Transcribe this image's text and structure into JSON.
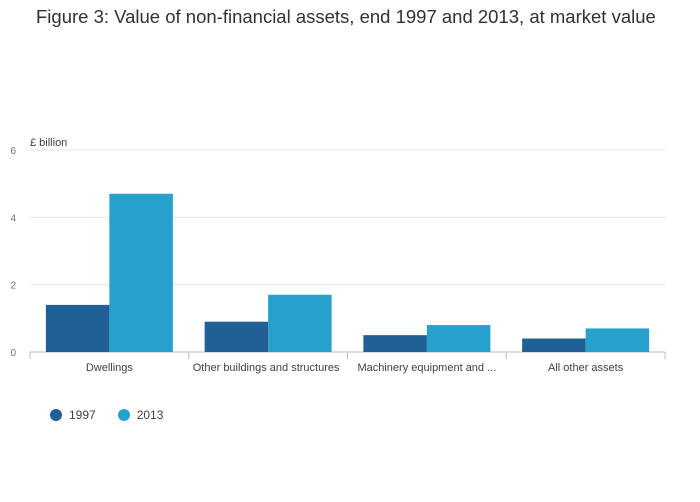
{
  "title": "Figure 3: Value of non-financial assets, end 1997 and 2013, at market value",
  "colors": {
    "s1997": "#206095",
    "s2013": "#27a0cc",
    "grid": "#e5e5e5",
    "axis": "#bebebe"
  },
  "chart_data": {
    "type": "bar",
    "title": "Figure 3: Value of non-financial assets, end 1997 and 2013, at market value",
    "ylabel": "£ billion",
    "xlabel": "",
    "ylim": [
      0,
      6
    ],
    "yticks": [
      "0",
      "2",
      "4",
      "6"
    ],
    "categories": [
      "Dwellings",
      "Other buildings and structures",
      "Machinery equipment and ...",
      "All other assets"
    ],
    "series": [
      {
        "name": "1997",
        "values": [
          1.4,
          0.9,
          0.5,
          0.4
        ]
      },
      {
        "name": "2013",
        "values": [
          4.7,
          1.7,
          0.8,
          0.7
        ]
      }
    ],
    "grid": true,
    "legend": "bottom-left"
  }
}
